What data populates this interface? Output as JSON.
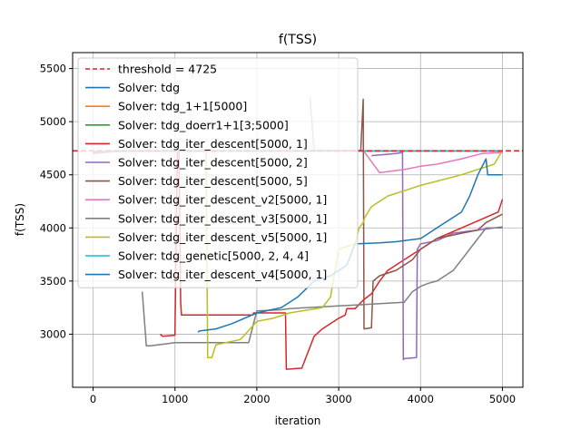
{
  "chart_data": {
    "type": "line",
    "title": "f(TSS)",
    "xlabel": "iteration",
    "ylabel": "f(TSS)",
    "xlim": [
      -250,
      5250
    ],
    "ylim": [
      2500,
      5650
    ],
    "xticks": [
      0,
      1000,
      2000,
      3000,
      4000,
      5000
    ],
    "yticks": [
      3000,
      3500,
      4000,
      4500,
      5000,
      5500
    ],
    "xtick_labels": [
      "0",
      "1000",
      "2000",
      "3000",
      "4000",
      "5000"
    ],
    "ytick_labels": [
      "3000",
      "3500",
      "4000",
      "4500",
      "5000",
      "5500"
    ],
    "grid": true,
    "legend_position": "top-left",
    "threshold": {
      "name": "threshold = 4725",
      "value": 4725,
      "color": "#d62728",
      "dash": true
    },
    "series": [
      {
        "name": "Solver: tdg",
        "color": "#1f77b4",
        "points": [
          [
            0,
            4700
          ],
          [
            300,
            4720
          ],
          [
            600,
            4725
          ],
          [
            1000,
            4725
          ],
          [
            2000,
            4725
          ],
          [
            3000,
            4725
          ],
          [
            4000,
            4725
          ],
          [
            5000,
            4725
          ]
        ]
      },
      {
        "name": "Solver: tdg_1+1[5000]",
        "color": "#ff7f0e",
        "points": [
          [
            0,
            4710
          ],
          [
            500,
            4725
          ],
          [
            2000,
            4725
          ],
          [
            4000,
            4725
          ],
          [
            5000,
            4725
          ]
        ]
      },
      {
        "name": "Solver: tdg_doerr1+1[3;5000]",
        "color": "#2ca02c",
        "points": [
          [
            0,
            4715
          ],
          [
            300,
            4725
          ],
          [
            3000,
            4725
          ],
          [
            4000,
            4725
          ],
          [
            5000,
            4725
          ]
        ]
      },
      {
        "name": "Solver: tdg_iter_descent[5000, 1]",
        "color": "#d62728",
        "points": [
          [
            820,
            3000
          ],
          [
            850,
            2980
          ],
          [
            1000,
            2990
          ],
          [
            1030,
            4730
          ],
          [
            1050,
            4730
          ],
          [
            1070,
            3300
          ],
          [
            1080,
            3180
          ],
          [
            1950,
            3180
          ],
          [
            1960,
            3200
          ],
          [
            2350,
            3200
          ],
          [
            2360,
            2670
          ],
          [
            2550,
            2680
          ],
          [
            2700,
            2980
          ],
          [
            2800,
            3050
          ],
          [
            2900,
            3100
          ],
          [
            3000,
            3150
          ],
          [
            3080,
            3180
          ],
          [
            3100,
            3240
          ],
          [
            3200,
            3240
          ],
          [
            3300,
            3320
          ],
          [
            3400,
            3380
          ],
          [
            3500,
            3500
          ],
          [
            3600,
            3600
          ],
          [
            3800,
            3700
          ],
          [
            4000,
            3800
          ],
          [
            4200,
            3900
          ],
          [
            4500,
            4000
          ],
          [
            4800,
            4100
          ],
          [
            4950,
            4150
          ],
          [
            5000,
            4270
          ]
        ]
      },
      {
        "name": "Solver: tdg_iter_descent[5000, 2]",
        "color": "#9467bd",
        "points": [
          [
            3400,
            4680
          ],
          [
            3700,
            4700
          ],
          [
            3780,
            4710
          ],
          [
            3790,
            2760
          ],
          [
            3800,
            2770
          ],
          [
            3950,
            2780
          ],
          [
            3960,
            3800
          ],
          [
            4000,
            3850
          ],
          [
            4200,
            3880
          ],
          [
            4400,
            3950
          ],
          [
            4600,
            3970
          ],
          [
            4800,
            3990
          ],
          [
            5000,
            4010
          ]
        ]
      },
      {
        "name": "Solver: tdg_iter_descent[5000, 5]",
        "color": "#8c564b",
        "points": [
          [
            3270,
            4730
          ],
          [
            3300,
            5210
          ],
          [
            3310,
            3050
          ],
          [
            3400,
            3060
          ],
          [
            3420,
            3500
          ],
          [
            3500,
            3550
          ],
          [
            3700,
            3600
          ],
          [
            3800,
            3650
          ],
          [
            3900,
            3700
          ],
          [
            4000,
            3800
          ],
          [
            4200,
            3900
          ],
          [
            4500,
            3950
          ],
          [
            4700,
            3980
          ],
          [
            4800,
            4050
          ],
          [
            5000,
            4130
          ]
        ]
      },
      {
        "name": "Solver: tdg_iter_descent_v2[5000, 1]",
        "color": "#e377c2",
        "points": [
          [
            2650,
            5230
          ],
          [
            2700,
            4730
          ],
          [
            2850,
            4730
          ],
          [
            3000,
            4730
          ],
          [
            3300,
            4730
          ],
          [
            3500,
            4520
          ],
          [
            3800,
            4550
          ],
          [
            4000,
            4580
          ],
          [
            4200,
            4600
          ],
          [
            4500,
            4650
          ],
          [
            4750,
            4700
          ],
          [
            5000,
            4710
          ]
        ]
      },
      {
        "name": "Solver: tdg_iter_descent_v3[5000, 1]",
        "color": "#7f7f7f",
        "points": [
          [
            600,
            3400
          ],
          [
            650,
            2890
          ],
          [
            700,
            2890
          ],
          [
            800,
            2900
          ],
          [
            900,
            2910
          ],
          [
            1000,
            2920
          ],
          [
            1900,
            2920
          ],
          [
            2000,
            3220
          ],
          [
            2300,
            3230
          ],
          [
            2400,
            3240
          ],
          [
            3800,
            3300
          ],
          [
            3900,
            3400
          ],
          [
            4000,
            3450
          ],
          [
            4100,
            3480
          ],
          [
            4200,
            3500
          ],
          [
            4300,
            3550
          ],
          [
            4400,
            3600
          ],
          [
            4500,
            3700
          ],
          [
            4600,
            3800
          ],
          [
            4700,
            3900
          ],
          [
            4800,
            4000
          ],
          [
            5000,
            4000
          ]
        ]
      },
      {
        "name": "Solver: tdg_iter_descent_v5[5000, 1]",
        "color": "#bcbd22",
        "points": [
          [
            1380,
            4730
          ],
          [
            1400,
            2780
          ],
          [
            1450,
            2780
          ],
          [
            1500,
            2900
          ],
          [
            1800,
            2950
          ],
          [
            2000,
            3120
          ],
          [
            2200,
            3150
          ],
          [
            2400,
            3200
          ],
          [
            2800,
            3250
          ],
          [
            2850,
            3300
          ],
          [
            2900,
            3350
          ],
          [
            3000,
            3800
          ],
          [
            3200,
            3850
          ],
          [
            3250,
            4000
          ],
          [
            3300,
            4050
          ],
          [
            3320,
            4100
          ],
          [
            3400,
            4200
          ],
          [
            3500,
            4250
          ],
          [
            3600,
            4300
          ],
          [
            3800,
            4350
          ],
          [
            4000,
            4400
          ],
          [
            4500,
            4500
          ],
          [
            4900,
            4600
          ],
          [
            5000,
            4730
          ]
        ]
      },
      {
        "name": "Solver: tdg_genetic[5000, 2, 4, 4]",
        "color": "#17becf",
        "points": [
          [
            0,
            4720
          ],
          [
            1000,
            4722
          ],
          [
            2000,
            4724
          ],
          [
            3000,
            4725
          ],
          [
            5000,
            4725
          ]
        ]
      },
      {
        "name": "Solver: tdg_iter_descent_v4[5000, 1]",
        "color": "#1f77b4",
        "points": [
          [
            1280,
            3020
          ],
          [
            1300,
            3030
          ],
          [
            1400,
            3040
          ],
          [
            1500,
            3050
          ],
          [
            1700,
            3100
          ],
          [
            2000,
            3200
          ],
          [
            2300,
            3250
          ],
          [
            2500,
            3350
          ],
          [
            2700,
            3500
          ],
          [
            2900,
            3550
          ],
          [
            3000,
            3600
          ],
          [
            3100,
            3650
          ],
          [
            3200,
            3850
          ],
          [
            3500,
            3860
          ],
          [
            3700,
            3870
          ],
          [
            4000,
            3900
          ],
          [
            4200,
            4000
          ],
          [
            4300,
            4050
          ],
          [
            4500,
            4150
          ],
          [
            4600,
            4300
          ],
          [
            4700,
            4500
          ],
          [
            4800,
            4650
          ],
          [
            4820,
            4500
          ],
          [
            5000,
            4500
          ]
        ]
      }
    ]
  }
}
